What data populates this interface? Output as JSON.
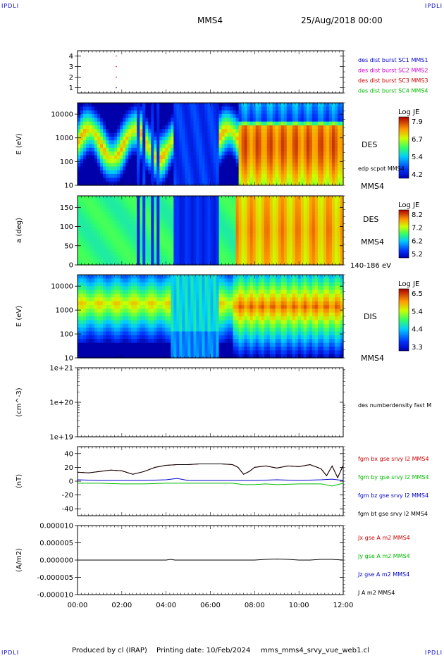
{
  "corner_label": "IPDLI",
  "header": {
    "spacecraft": "MMS4",
    "date": "25/Aug/2018 00:00"
  },
  "footer": {
    "producer": "Produced by cl (IRAP)",
    "printing": "Printing date: 10/Feb/2024",
    "file": "mms_mms4_srvy_vue_web1.cl"
  },
  "time_axis": {
    "start_hour": 0,
    "end_hour": 12,
    "ticks": [
      "00:00",
      "02:00",
      "04:00",
      "06:00",
      "08:00",
      "10:00",
      "12:00"
    ]
  },
  "chart_data": [
    {
      "type": "scatter",
      "name": "burst-flags",
      "ylim": [
        0.5,
        4.5
      ],
      "yticks": [
        "1",
        "2",
        "3",
        "4"
      ],
      "legend": [
        {
          "label": "des dist burst SC1 MMS1",
          "color": "#0000cc"
        },
        {
          "label": "des dist burst SC2 MMS2",
          "color": "#cc00cc"
        },
        {
          "label": "des dist burst SC3 MMS3",
          "color": "#cc0000"
        },
        {
          "label": "des dist burst SC4 MMS4",
          "color": "#00bb00"
        }
      ],
      "points": [
        {
          "x": 1.75,
          "y": 1,
          "color": "#0000cc"
        },
        {
          "x": 1.75,
          "y": 2,
          "color": "#cc0000"
        },
        {
          "x": 1.75,
          "y": 3,
          "color": "#cc0000"
        },
        {
          "x": 1.75,
          "y": 4,
          "color": "#cc00cc"
        }
      ]
    },
    {
      "type": "heatmap",
      "name": "des-energy",
      "ylabel": "E (eV)",
      "yscale": "log",
      "ylim": [
        10,
        30000
      ],
      "yticks": [
        "10",
        "100",
        "1000",
        "10000"
      ],
      "right_labels": [
        "DES",
        "edp scpot MMS4",
        "MMS4"
      ],
      "colorbar": {
        "title": "Log JE",
        "ticks": [
          "7.9",
          "6.7",
          "5.4",
          "4.2"
        ]
      }
    },
    {
      "type": "heatmap",
      "name": "des-pitch",
      "ylabel": "a (deg)",
      "ylim": [
        0,
        180
      ],
      "yticks": [
        "0",
        "50",
        "100",
        "150"
      ],
      "right_labels": [
        "DES",
        "MMS4",
        "140-186 eV"
      ],
      "colorbar": {
        "title": "Log JE",
        "ticks": [
          "8.2",
          "7.2",
          "6.2",
          "5.2"
        ]
      }
    },
    {
      "type": "heatmap",
      "name": "dis-energy",
      "ylabel": "E (eV)",
      "yscale": "log",
      "ylim": [
        10,
        30000
      ],
      "yticks": [
        "10",
        "100",
        "1000",
        "10000"
      ],
      "right_labels": [
        "DIS",
        "MMS4"
      ],
      "colorbar": {
        "title": "Log JE",
        "ticks": [
          "6.5",
          "5.4",
          "4.4",
          "3.3"
        ]
      }
    },
    {
      "type": "line",
      "name": "density",
      "ylabel": "(cm^-3)",
      "yscale": "log",
      "yticks": [
        "1e+19",
        "1e+20",
        "1e+21"
      ],
      "legend": [
        {
          "label": "des numberdensity fast M",
          "color": "#000000"
        }
      ],
      "series": []
    },
    {
      "type": "line",
      "name": "magnetic-field",
      "ylabel": "(nT)",
      "ylim": [
        -50,
        50
      ],
      "yticks": [
        "-40",
        "-20",
        "0",
        "20",
        "40"
      ],
      "legend": [
        {
          "label": "fgm bx gse srvy l2 MMS4",
          "color": "#cc0000"
        },
        {
          "label": "fgm by gse srvy l2 MMS4",
          "color": "#00bb00"
        },
        {
          "label": "fgm bz gse srvy l2 MMS4",
          "color": "#0000cc"
        },
        {
          "label": "fgm bt gse srvy l2 MMS4",
          "color": "#000000"
        }
      ],
      "series": [
        {
          "key": "bx",
          "color": "#cc0000",
          "x": [
            0,
            0.5,
            1,
            1.5,
            2,
            2.5,
            3,
            3.5,
            4,
            4.5,
            5,
            5.5,
            6,
            6.5,
            7,
            7.25,
            7.5,
            7.75,
            8,
            8.5,
            9,
            9.5,
            10,
            10.5,
            11,
            11.25,
            11.5,
            11.75,
            12
          ],
          "y": [
            13,
            12,
            14,
            16,
            15,
            10,
            14,
            20,
            23,
            24,
            24,
            25,
            25,
            25,
            24,
            20,
            10,
            14,
            20,
            22,
            19,
            22,
            21,
            24,
            18,
            8,
            22,
            5,
            23
          ]
        },
        {
          "key": "by",
          "color": "#00bb00",
          "x": [
            0,
            1,
            2,
            3,
            4,
            5,
            6,
            7,
            7.5,
            8,
            8.5,
            9,
            10,
            11,
            11.5,
            12
          ],
          "y": [
            -3,
            -3,
            -4,
            -4,
            -3,
            -3,
            -3,
            -3,
            -5,
            -5,
            -4,
            -5,
            -4,
            -4,
            -7,
            -3
          ]
        },
        {
          "key": "bz",
          "color": "#0000cc",
          "x": [
            0,
            1,
            2,
            3,
            4,
            4.5,
            5,
            6,
            7,
            8,
            9,
            10,
            11,
            11.5,
            12
          ],
          "y": [
            2,
            1,
            1,
            1,
            2,
            4,
            1,
            1,
            1,
            1,
            2,
            1,
            2,
            3,
            1
          ]
        },
        {
          "key": "bt",
          "color": "#000000",
          "x": [
            0,
            0.5,
            1,
            1.5,
            2,
            2.5,
            3,
            3.5,
            4,
            4.5,
            5,
            5.5,
            6,
            6.5,
            7,
            7.25,
            7.5,
            7.75,
            8,
            8.5,
            9,
            9.5,
            10,
            10.5,
            11,
            11.25,
            11.5,
            11.75,
            12
          ],
          "y": [
            13,
            12,
            14,
            16,
            15,
            10,
            14,
            20,
            23,
            24,
            24,
            25,
            25,
            25,
            24,
            20,
            10,
            14,
            20,
            22,
            19,
            22,
            21,
            24,
            18,
            8,
            22,
            5,
            23
          ]
        }
      ]
    },
    {
      "type": "line",
      "name": "current-density",
      "ylabel": "(A/m2)",
      "ylim": [
        -1e-05,
        1e-05
      ],
      "yticks": [
        "-0.000010",
        "-0.000005",
        "0.000000",
        "0.000005",
        "0.000010"
      ],
      "legend": [
        {
          "label": "Jx gse A m2 MMS4",
          "color": "#cc0000"
        },
        {
          "label": "Jy gse A m2 MMS4",
          "color": "#00bb00"
        },
        {
          "label": "Jz gse A m2 MMS4",
          "color": "#0000cc"
        },
        {
          "label": "J A m2 MMS4",
          "color": "#000000"
        }
      ],
      "series": [
        {
          "key": "j",
          "color": "#000000",
          "x": [
            0,
            2,
            4,
            4.2,
            4.4,
            6,
            8,
            8.5,
            9,
            9.5,
            10,
            10.5,
            11,
            11.5,
            12
          ],
          "y": [
            0,
            0,
            0,
            2e-07,
            0,
            0,
            0,
            2e-07,
            3e-07,
            2e-07,
            0,
            0,
            2e-07,
            2e-07,
            0
          ]
        }
      ]
    }
  ]
}
